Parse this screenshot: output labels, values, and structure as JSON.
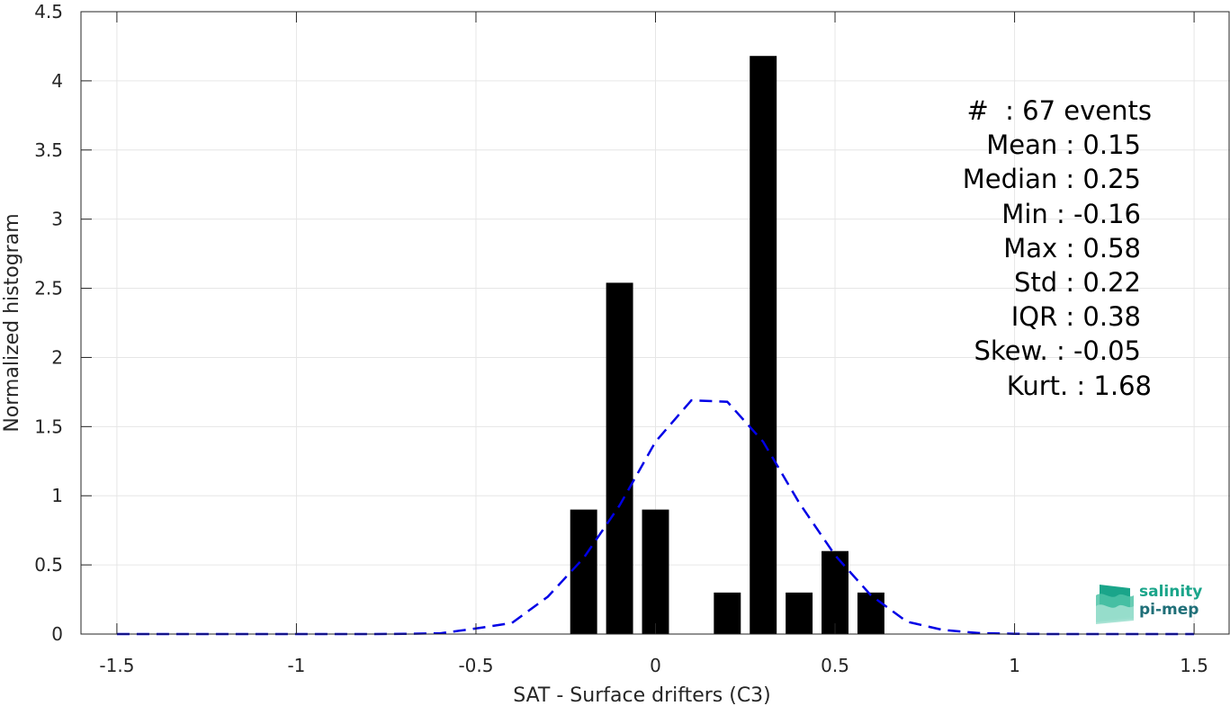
{
  "chart_data": {
    "type": "bar",
    "xlabel": "SAT - Surface drifters (C3)",
    "ylabel": "Normalized histogram",
    "xlim": [
      -1.6,
      1.6
    ],
    "ylim": [
      0,
      4.5
    ],
    "xticks": [
      -1.5,
      -1,
      -0.5,
      0,
      0.5,
      1,
      1.5
    ],
    "xtick_labels": [
      "-1.5",
      "-1",
      "-0.5",
      "0",
      "0.5",
      "1",
      "1.5"
    ],
    "yticks": [
      0,
      0.5,
      1,
      1.5,
      2,
      2.5,
      3,
      3.5,
      4,
      4.5
    ],
    "ytick_labels": [
      "0",
      "0.5",
      "1",
      "1.5",
      "2",
      "2.5",
      "3",
      "3.5",
      "4",
      "4.5"
    ],
    "grid": true,
    "bar_width": 0.075,
    "bars": {
      "x": [
        -0.2,
        -0.1,
        0.0,
        0.2,
        0.3,
        0.4,
        0.5,
        0.6
      ],
      "values": [
        0.9,
        2.54,
        0.9,
        0.3,
        4.18,
        0.3,
        0.6,
        0.3
      ],
      "color": "#000000"
    },
    "fit_curve": {
      "style": "dashed",
      "color": "#0000e6",
      "x": [
        -1.5,
        -1.4,
        -1.3,
        -1.2,
        -1.1,
        -1.0,
        -0.9,
        -0.8,
        -0.7,
        -0.6,
        -0.5,
        -0.4,
        -0.3,
        -0.2,
        -0.1,
        0.0,
        0.1,
        0.2,
        0.3,
        0.4,
        0.5,
        0.6,
        0.7,
        0.8,
        0.9,
        1.0,
        1.1,
        1.2,
        1.3,
        1.4,
        1.5
      ],
      "y": [
        0,
        0,
        0,
        0,
        0,
        0,
        0,
        0,
        0.001,
        0.005,
        0.04,
        0.08,
        0.27,
        0.55,
        0.93,
        1.39,
        1.69,
        1.68,
        1.39,
        0.95,
        0.57,
        0.28,
        0.09,
        0.03,
        0.007,
        0.002,
        0,
        0,
        0,
        0,
        0
      ],
      "smoothing_note": ""
    }
  },
  "stats": {
    "count_line": "#  : 67 events",
    "mean_line": "Mean : 0.15",
    "median_line": "Median : 0.25",
    "min_line": "Min : -0.16",
    "max_line": "Max : 0.58",
    "std_line": "Std : 0.22",
    "iqr_line": "IQR : 0.38",
    "skew_line": "Skew. : -0.05",
    "kurt_line": "Kurt. : 1.68"
  },
  "logo": {
    "line1": "salinity",
    "line2": "pi-mep",
    "color": "#1aa58a"
  }
}
